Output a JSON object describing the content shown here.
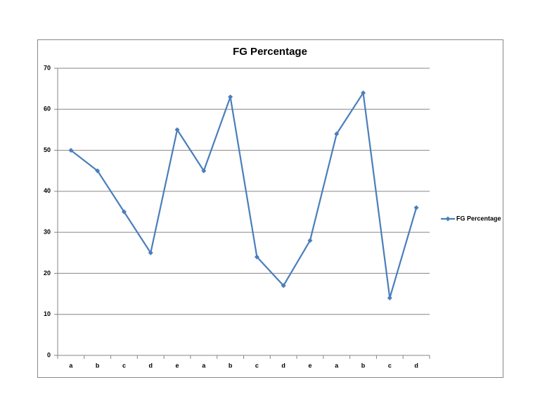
{
  "chart_data": {
    "type": "line",
    "title": "FG Percentage",
    "categories": [
      "a",
      "b",
      "c",
      "d",
      "e",
      "a",
      "b",
      "c",
      "d",
      "e",
      "a",
      "b",
      "c",
      "d"
    ],
    "series": [
      {
        "name": "FG Percentage",
        "color": "#4a7ebb",
        "values": [
          50,
          45,
          35,
          25,
          55,
          45,
          63,
          24,
          17,
          28,
          54,
          64,
          14,
          36
        ]
      }
    ],
    "ylim": [
      0,
      70
    ],
    "yticks": [
      0,
      10,
      20,
      30,
      40,
      50,
      60,
      70
    ],
    "grid": true,
    "legend": "right"
  }
}
